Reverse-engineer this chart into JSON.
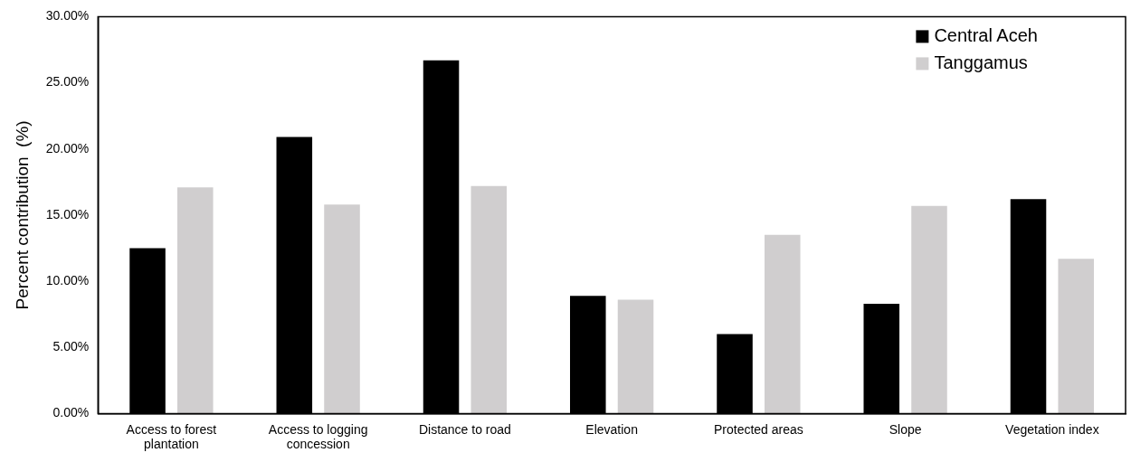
{
  "chart_data": {
    "type": "bar",
    "ylabel": "Percent contribution  (%)",
    "categories": [
      [
        "Access to forest",
        "plantation"
      ],
      [
        "Access to logging",
        "concession"
      ],
      "Distance to road",
      "Elevation",
      "Protected areas",
      "Slope",
      "Vegetation index"
    ],
    "series": [
      {
        "name": "Central Aceh",
        "color": "#000000",
        "values": [
          12.5,
          20.9,
          26.7,
          8.9,
          6.0,
          8.3,
          16.2
        ]
      },
      {
        "name": "Tanggamus",
        "color": "#d0cecf",
        "values": [
          17.1,
          15.8,
          17.2,
          8.6,
          13.5,
          15.7,
          11.7
        ]
      }
    ],
    "ylim": [
      0,
      30
    ],
    "yticks": [
      {
        "value": 0,
        "label": "0.00%"
      },
      {
        "value": 5,
        "label": "5.00%"
      },
      {
        "value": 10,
        "label": "10.00%"
      },
      {
        "value": 15,
        "label": "15.00%"
      },
      {
        "value": 20,
        "label": "20.00%"
      },
      {
        "value": 25,
        "label": "25.00%"
      },
      {
        "value": 30,
        "label": "30.00%"
      }
    ],
    "grid": false,
    "legend": "top right"
  }
}
